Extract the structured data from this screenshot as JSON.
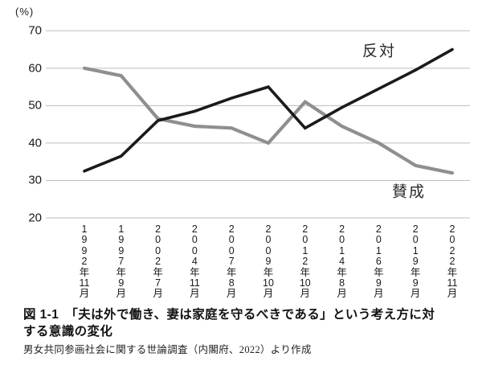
{
  "chart": {
    "percent_label": "(%)",
    "colors": {
      "oppose_line": "#1a1a1a",
      "agree_line": "#8f8f8f",
      "gridline": "#bdbdbd",
      "text": "#1a1a1a"
    }
  },
  "chart_data": {
    "type": "line",
    "title": "「夫は外で働き、妻は家庭を守るべきである」という考え方に対する意識の変化",
    "ylabel": "(%)",
    "ylim": [
      20,
      70
    ],
    "yticks": [
      20,
      30,
      40,
      50,
      60,
      70
    ],
    "grid": true,
    "legend_position": "inline-annotations",
    "categories": [
      "1992年11月",
      "1997年9月",
      "2002年7月",
      "2004年11月",
      "2007年8月",
      "2009年10月",
      "2012年10月",
      "2014年8月",
      "2016年9月",
      "2019年9月",
      "2022年11月"
    ],
    "series": [
      {
        "name": "反対",
        "color": "#1a1a1a",
        "values": [
          32.5,
          36.5,
          46,
          48.5,
          52,
          55,
          44,
          49.5,
          54.5,
          59.5,
          65
        ]
      },
      {
        "name": "賛成",
        "color": "#8f8f8f",
        "values": [
          60,
          58,
          46.5,
          44.5,
          44,
          40,
          51,
          44.5,
          40,
          34,
          32
        ]
      }
    ]
  },
  "caption": {
    "lines": [
      "図 1-1　「夫は外で働き、妻は家庭を守るべきである」という考え方に対",
      "する意識の変化"
    ],
    "source": "男女共同参画社会に関する世論調査（内閣府、2022）より作成"
  }
}
